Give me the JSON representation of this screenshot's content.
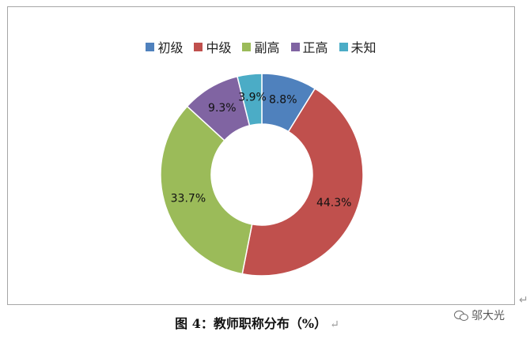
{
  "chart_data": {
    "type": "pie",
    "variant": "donut",
    "legend_position": "top",
    "categories": [
      "初级",
      "中级",
      "副高",
      "正高",
      "未知"
    ],
    "values": [
      8.8,
      44.3,
      33.7,
      9.3,
      3.9
    ],
    "data_labels": [
      "8.8%",
      "44.3%",
      "33.7%",
      "9.3%",
      "3.9%"
    ],
    "colors": [
      "#4F81BD",
      "#C0504D",
      "#9BBB59",
      "#8064A2",
      "#4BACC6"
    ]
  },
  "caption": "图 4：教师职称分布（%）",
  "caption_return_mark": "↵",
  "frame_return_mark": "↵",
  "watermark": {
    "text": "邬大光",
    "icon": "wechat-icon"
  }
}
